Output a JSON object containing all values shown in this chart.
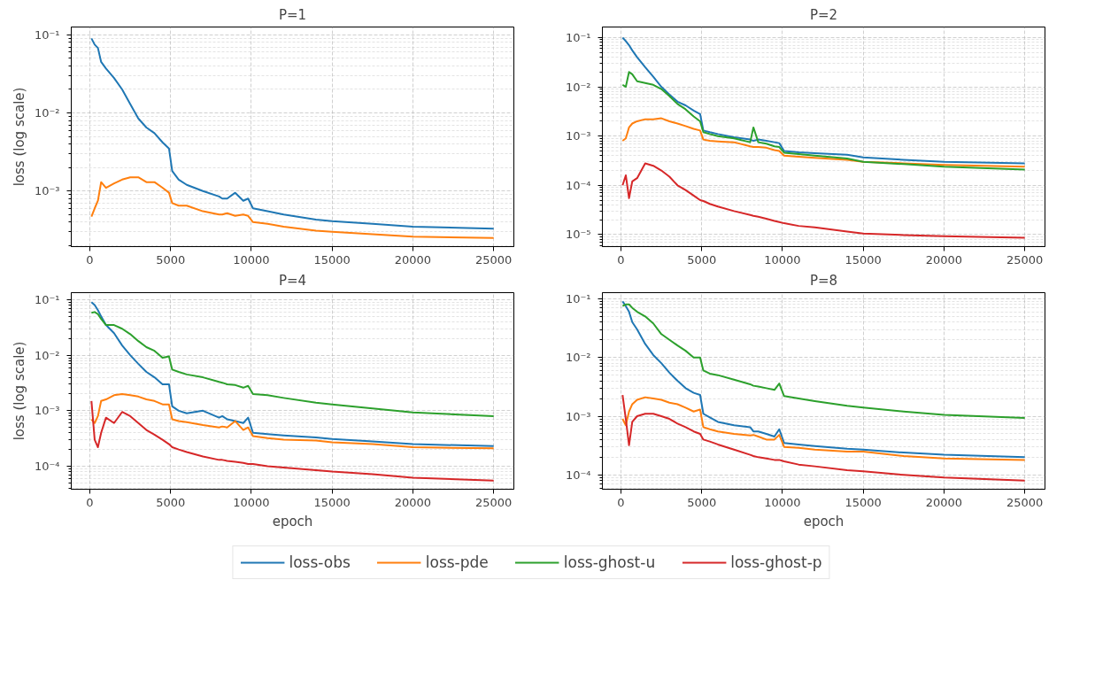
{
  "chart_data": [
    {
      "type": "line",
      "title": "P=1",
      "ylabel": "loss (log scale)",
      "log": true,
      "grid": true,
      "legend": false,
      "x": [
        100,
        300,
        500,
        700,
        1000,
        1500,
        2000,
        2500,
        3000,
        3500,
        4000,
        4500,
        4900,
        5100,
        5500,
        6000,
        7000,
        8000,
        8200,
        8500,
        9000,
        9500,
        9800,
        10100,
        11000,
        12000,
        14000,
        15000,
        17500,
        20000,
        25000
      ],
      "xlim": [
        -1150,
        26250
      ],
      "xticks": [
        0,
        5000,
        10000,
        15000,
        20000,
        25000
      ],
      "ylim": [
        0.000194,
        0.126
      ],
      "yticks": [
        {
          "value": 0.001,
          "label": "10⁻³"
        },
        {
          "value": 0.01,
          "label": "10⁻²"
        },
        {
          "value": 0.1,
          "label": "10⁻¹"
        }
      ],
      "series": [
        {
          "color": "#1f77b4",
          "values": [
            0.09,
            0.075,
            0.068,
            0.045,
            0.037,
            0.028,
            0.02,
            0.013,
            0.0085,
            0.0065,
            0.0055,
            0.0042,
            0.0035,
            0.0018,
            0.0014,
            0.0012,
            0.001,
            0.00085,
            0.0008,
            0.0008,
            0.00095,
            0.00075,
            0.0008,
            0.0006,
            0.00055,
            0.0005,
            0.00043,
            0.00041,
            0.00038,
            0.00035,
            0.00033
          ]
        },
        {
          "color": "#ff7f0e",
          "values": [
            0.00047,
            0.0006,
            0.00075,
            0.0013,
            0.0011,
            0.00125,
            0.0014,
            0.0015,
            0.0015,
            0.0013,
            0.0013,
            0.0011,
            0.00095,
            0.0007,
            0.00065,
            0.00065,
            0.00055,
            0.0005,
            0.0005,
            0.00052,
            0.00048,
            0.0005,
            0.00048,
            0.0004,
            0.00038,
            0.00035,
            0.00031,
            0.0003,
            0.00028,
            0.00026,
            0.00025
          ]
        }
      ]
    },
    {
      "type": "line",
      "title": "P=2",
      "log": true,
      "grid": true,
      "legend": false,
      "x": [
        100,
        300,
        500,
        700,
        1000,
        1500,
        2000,
        2500,
        3000,
        3500,
        4000,
        4500,
        4900,
        5100,
        5500,
        6000,
        7000,
        8000,
        8200,
        8500,
        9000,
        9500,
        9800,
        10100,
        11000,
        12000,
        14000,
        15000,
        17500,
        20000,
        25000
      ],
      "xlim": [
        -1150,
        26250
      ],
      "xticks": [
        0,
        5000,
        10000,
        15000,
        20000,
        25000
      ],
      "ylim": [
        5.7e-06,
        0.164
      ],
      "yticks": [
        {
          "value": 1e-05,
          "label": "10⁻⁵"
        },
        {
          "value": 0.0001,
          "label": "10⁻⁴"
        },
        {
          "value": 0.001,
          "label": "10⁻³"
        },
        {
          "value": 0.01,
          "label": "10⁻²"
        },
        {
          "value": 0.1,
          "label": "10⁻¹"
        }
      ],
      "series": [
        {
          "color": "#1f77b4",
          "values": [
            0.1,
            0.085,
            0.07,
            0.055,
            0.04,
            0.025,
            0.016,
            0.01,
            0.007,
            0.005,
            0.0042,
            0.0033,
            0.0028,
            0.0013,
            0.0012,
            0.0011,
            0.00095,
            0.00085,
            0.0008,
            0.00085,
            0.0008,
            0.00075,
            0.00072,
            0.0005,
            0.00047,
            0.00045,
            0.00042,
            0.00037,
            0.00033,
            0.0003,
            0.00028
          ]
        },
        {
          "color": "#ff7f0e",
          "values": [
            0.0008,
            0.0009,
            0.0015,
            0.0018,
            0.002,
            0.0022,
            0.0022,
            0.0023,
            0.002,
            0.0018,
            0.0016,
            0.0014,
            0.0013,
            0.00085,
            0.0008,
            0.00078,
            0.00075,
            0.00062,
            0.0006,
            0.0006,
            0.00058,
            0.00052,
            0.0005,
            0.0004,
            0.00038,
            0.00036,
            0.00033,
            0.0003,
            0.00028,
            0.00026,
            0.00024
          ]
        },
        {
          "color": "#2ca02c",
          "values": [
            0.011,
            0.01,
            0.02,
            0.018,
            0.013,
            0.012,
            0.011,
            0.009,
            0.0065,
            0.0045,
            0.0035,
            0.0025,
            0.002,
            0.0012,
            0.0011,
            0.001,
            0.0009,
            0.00075,
            0.0015,
            0.00075,
            0.0007,
            0.00062,
            0.0006,
            0.00046,
            0.00043,
            0.0004,
            0.00035,
            0.0003,
            0.00027,
            0.00024,
            0.00021
          ]
        },
        {
          "color": "#d62728",
          "values": [
            0.0001,
            0.00016,
            5.5e-05,
            0.00012,
            0.00014,
            0.00028,
            0.00025,
            0.0002,
            0.00015,
            0.0001,
            8e-05,
            6.2e-05,
            5e-05,
            4.8e-05,
            4.2e-05,
            3.7e-05,
            3e-05,
            2.5e-05,
            2.4e-05,
            2.3e-05,
            2.1e-05,
            1.9e-05,
            1.8e-05,
            1.7e-05,
            1.5e-05,
            1.4e-05,
            1.15e-05,
            1.05e-05,
            9.8e-06,
            9.3e-06,
            8.6e-06
          ]
        }
      ]
    },
    {
      "type": "line",
      "title": "P=4",
      "xlabel": "epoch",
      "ylabel": "loss (log scale)",
      "log": true,
      "grid": true,
      "legend": false,
      "x": [
        100,
        300,
        500,
        700,
        1000,
        1500,
        2000,
        2500,
        3000,
        3500,
        4000,
        4500,
        4900,
        5100,
        5500,
        6000,
        7000,
        8000,
        8200,
        8500,
        9000,
        9500,
        9800,
        10100,
        11000,
        12000,
        14000,
        15000,
        17500,
        20000,
        25000
      ],
      "xlim": [
        -1150,
        26250
      ],
      "xticks": [
        0,
        5000,
        10000,
        15000,
        20000,
        25000
      ],
      "ylim": [
        3.85e-05,
        0.134
      ],
      "yticks": [
        {
          "value": 0.0001,
          "label": "10⁻⁴"
        },
        {
          "value": 0.001,
          "label": "10⁻³"
        },
        {
          "value": 0.01,
          "label": "10⁻²"
        },
        {
          "value": 0.1,
          "label": "10⁻¹"
        }
      ],
      "series": [
        {
          "color": "#1f77b4",
          "values": [
            0.09,
            0.08,
            0.065,
            0.05,
            0.035,
            0.025,
            0.015,
            0.01,
            0.007,
            0.005,
            0.004,
            0.003,
            0.003,
            0.0012,
            0.001,
            0.0009,
            0.001,
            0.00075,
            0.0008,
            0.0007,
            0.00065,
            0.0006,
            0.00075,
            0.0004,
            0.00038,
            0.00036,
            0.00033,
            0.00031,
            0.00028,
            0.00025,
            0.00023
          ]
        },
        {
          "color": "#ff7f0e",
          "values": [
            0.0007,
            0.0006,
            0.0008,
            0.0015,
            0.0016,
            0.0019,
            0.002,
            0.0019,
            0.0018,
            0.0016,
            0.0015,
            0.0013,
            0.0013,
            0.0007,
            0.00065,
            0.00062,
            0.00055,
            0.0005,
            0.00052,
            0.0005,
            0.00065,
            0.00045,
            0.0005,
            0.00035,
            0.00032,
            0.0003,
            0.00029,
            0.00027,
            0.00025,
            0.00022,
            0.00021
          ]
        },
        {
          "color": "#2ca02c",
          "values": [
            0.058,
            0.06,
            0.055,
            0.045,
            0.035,
            0.035,
            0.03,
            0.024,
            0.018,
            0.014,
            0.012,
            0.009,
            0.0095,
            0.0055,
            0.005,
            0.0045,
            0.004,
            0.0033,
            0.0032,
            0.003,
            0.0029,
            0.0026,
            0.0028,
            0.002,
            0.0019,
            0.0017,
            0.0014,
            0.0013,
            0.0011,
            0.00093,
            0.0008
          ]
        },
        {
          "color": "#d62728",
          "values": [
            0.0015,
            0.0003,
            0.00022,
            0.0004,
            0.00075,
            0.0006,
            0.00095,
            0.0008,
            0.0006,
            0.00045,
            0.00037,
            0.0003,
            0.00025,
            0.00022,
            0.0002,
            0.00018,
            0.00015,
            0.00013,
            0.00013,
            0.000125,
            0.00012,
            0.000115,
            0.00011,
            0.00011,
            0.0001,
            9.5e-05,
            8.5e-05,
            8e-05,
            7.2e-05,
            6.2e-05,
            5.5e-05
          ]
        }
      ]
    },
    {
      "type": "line",
      "title": "P=8",
      "xlabel": "epoch",
      "log": true,
      "grid": true,
      "legend": "bottom",
      "x": [
        100,
        300,
        500,
        700,
        1000,
        1500,
        2000,
        2500,
        3000,
        3500,
        4000,
        4500,
        4900,
        5100,
        5500,
        6000,
        7000,
        8000,
        8200,
        8500,
        9000,
        9500,
        9800,
        10100,
        11000,
        12000,
        14000,
        15000,
        17500,
        20000,
        25000
      ],
      "xlim": [
        -1150,
        26250
      ],
      "xticks": [
        0,
        5000,
        10000,
        15000,
        20000,
        25000
      ],
      "ylim": [
        5.7e-05,
        0.127
      ],
      "yticks": [
        {
          "value": 0.0001,
          "label": "10⁻⁴"
        },
        {
          "value": 0.001,
          "label": "10⁻³"
        },
        {
          "value": 0.01,
          "label": "10⁻²"
        },
        {
          "value": 0.1,
          "label": "10⁻¹"
        }
      ],
      "series": [
        {
          "name": "loss-obs",
          "color": "#1f77b4",
          "values": [
            0.09,
            0.075,
            0.06,
            0.04,
            0.03,
            0.017,
            0.011,
            0.008,
            0.0055,
            0.004,
            0.003,
            0.0025,
            0.0023,
            0.0011,
            0.00095,
            0.0008,
            0.0007,
            0.00065,
            0.00055,
            0.00055,
            0.0005,
            0.00045,
            0.0006,
            0.00035,
            0.00033,
            0.00031,
            0.00028,
            0.00027,
            0.00024,
            0.00022,
            0.0002
          ]
        },
        {
          "name": "loss-pde",
          "color": "#ff7f0e",
          "values": [
            0.0009,
            0.0007,
            0.0012,
            0.0016,
            0.0019,
            0.0021,
            0.002,
            0.0019,
            0.0017,
            0.0016,
            0.0014,
            0.0012,
            0.0013,
            0.00065,
            0.0006,
            0.00055,
            0.0005,
            0.00047,
            0.00048,
            0.00045,
            0.0004,
            0.0004,
            0.00048,
            0.0003,
            0.00029,
            0.00027,
            0.00025,
            0.00025,
            0.00021,
            0.00019,
            0.00018
          ]
        },
        {
          "name": "loss-ghost-u",
          "color": "#2ca02c",
          "values": [
            0.075,
            0.08,
            0.08,
            0.07,
            0.06,
            0.05,
            0.038,
            0.025,
            0.02,
            0.016,
            0.013,
            0.01,
            0.01,
            0.006,
            0.0053,
            0.005,
            0.0042,
            0.0035,
            0.0033,
            0.0032,
            0.003,
            0.0028,
            0.0036,
            0.0022,
            0.002,
            0.0018,
            0.0015,
            0.0014,
            0.0012,
            0.00105,
            0.00093
          ]
        },
        {
          "name": "loss-ghost-p",
          "color": "#d62728",
          "values": [
            0.0023,
            0.0009,
            0.00032,
            0.0008,
            0.001,
            0.0011,
            0.0011,
            0.001,
            0.0009,
            0.00075,
            0.00065,
            0.00055,
            0.0005,
            0.0004,
            0.00037,
            0.00033,
            0.00027,
            0.00022,
            0.00021,
            0.0002,
            0.00019,
            0.00018,
            0.00018,
            0.00017,
            0.00015,
            0.00014,
            0.00012,
            0.000115,
            0.0001,
            9e-05,
            8e-05
          ]
        }
      ]
    }
  ]
}
